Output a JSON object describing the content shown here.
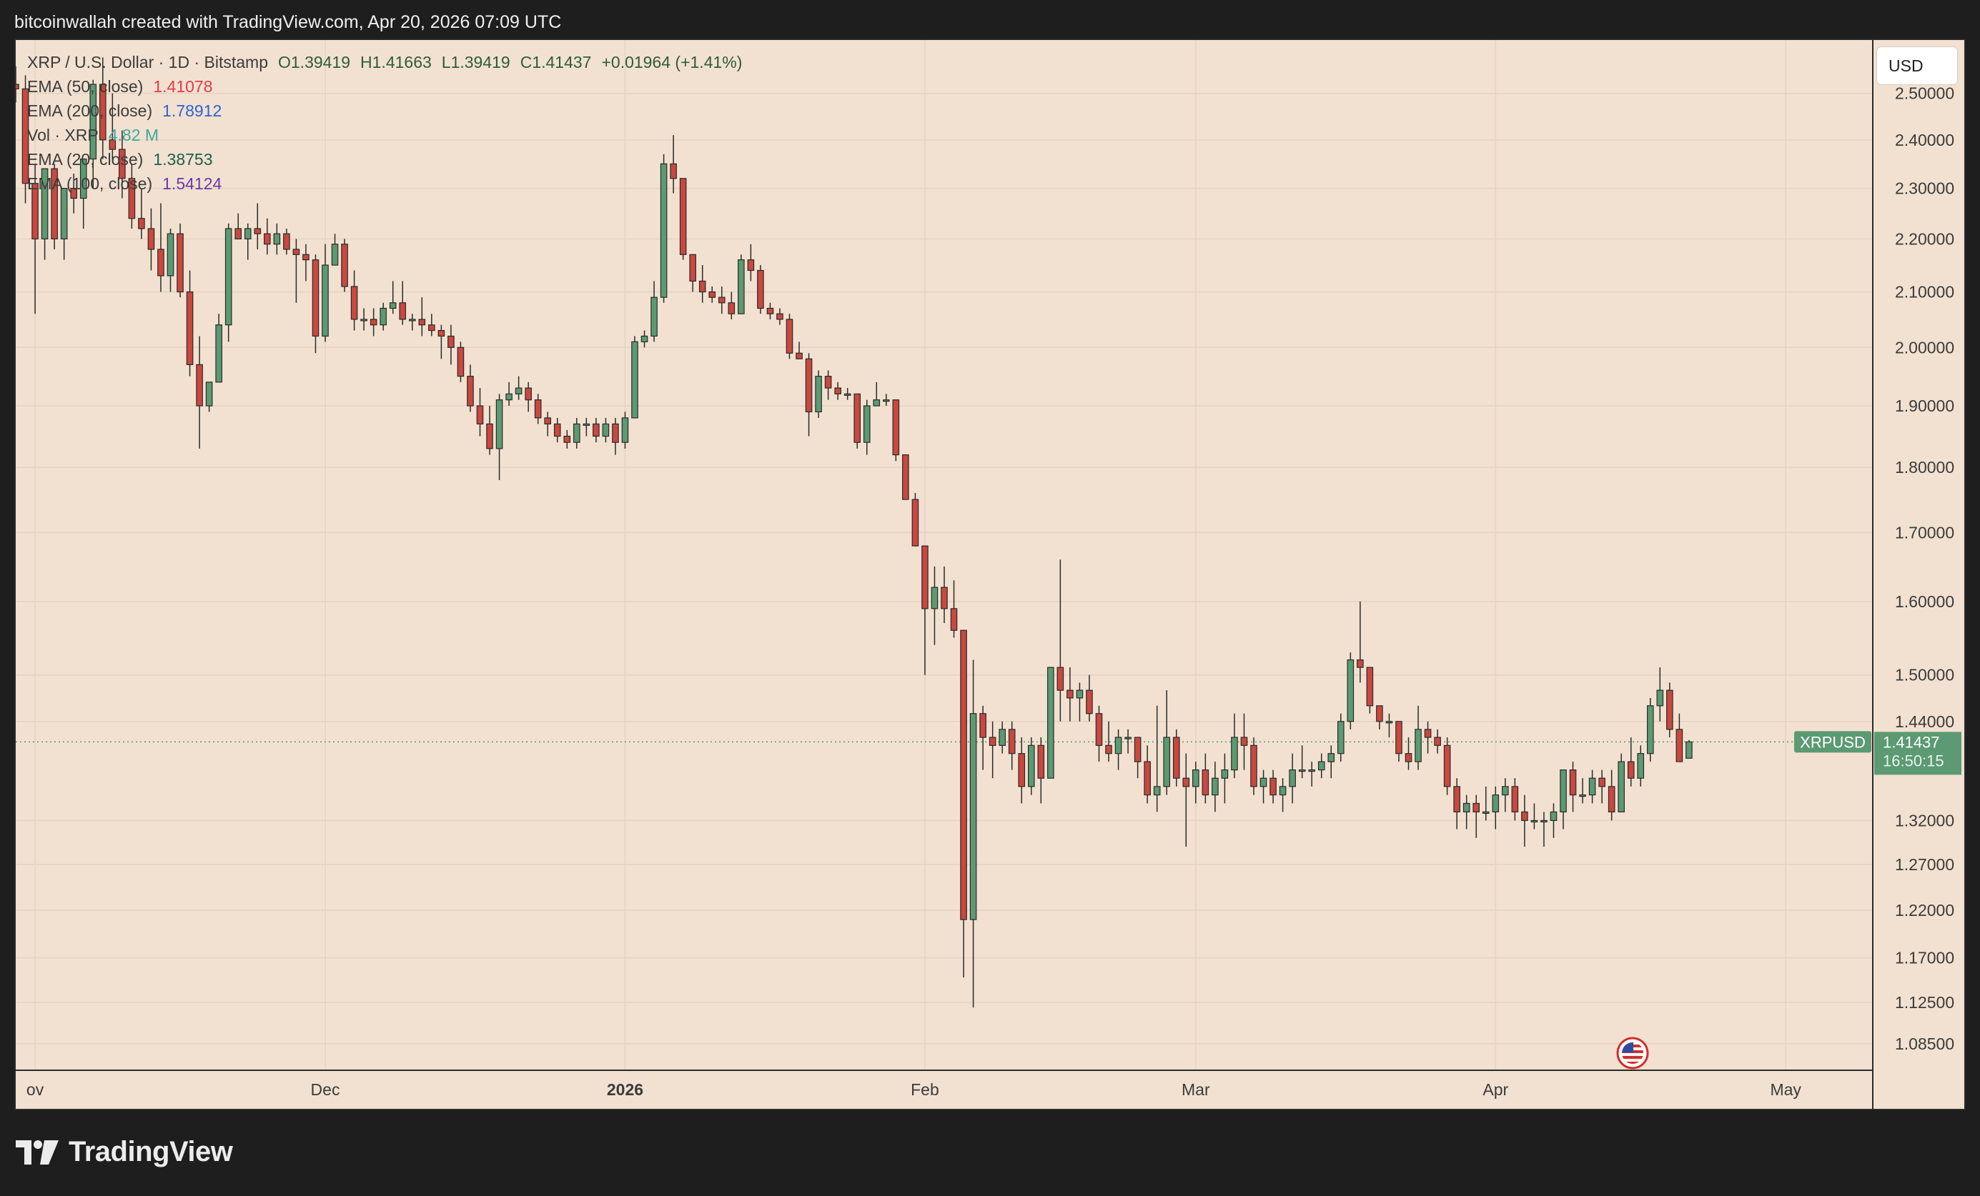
{
  "header": {
    "attribution": "bitcoinwallah created with TradingView.com, Apr 20, 2026 07:09 UTC"
  },
  "legend": {
    "symbol": "XRP / U.S. Dollar · 1D · Bitstamp",
    "open": "O1.39419",
    "high": "H1.41663",
    "low": "L1.39419",
    "close": "C1.41437",
    "change": "+0.01964 (+1.41%)",
    "ema50_label": "EMA (50, close)",
    "ema50_value": "1.41078",
    "ema200_label": "EMA (200, close)",
    "ema200_value": "1.78912",
    "vol_label": "Vol · XRP",
    "vol_value": "4.82 M",
    "ema20_label": "EMA (20, close)",
    "ema20_value": "1.38753",
    "ema100_label": "EMA (100, close)",
    "ema100_value": "1.54124"
  },
  "currency_button": "USD",
  "price_tag": {
    "symbol": "XRPUSD",
    "price": "1.41437",
    "countdown": "16:50:15"
  },
  "footer": {
    "brand": "TradingView"
  },
  "colors": {
    "up": "#5b9a72",
    "down": "#c9483f",
    "background": "#f2e1d0",
    "ema50": "#e03c4a",
    "ema200": "#2f62d6",
    "ema20": "#1f5e4a",
    "ema100": "#6a3aa8",
    "vol": "#3fa6a0"
  },
  "chart_data": {
    "type": "candlestick",
    "title": "XRP / U.S. Dollar · 1D · Bitstamp",
    "x_range": [
      "2025-10-30",
      "2026-05-10"
    ],
    "y_scale": "log",
    "y_range": [
      1.06,
      2.62
    ],
    "y_ticks": [
      2.5,
      2.4,
      2.3,
      2.2,
      2.1,
      2.0,
      1.9,
      1.8,
      1.7,
      1.6,
      1.5,
      1.44,
      1.32,
      1.27,
      1.22,
      1.17,
      1.125,
      1.085
    ],
    "x_ticks": [
      {
        "label": "ov",
        "date": "2025-11-01"
      },
      {
        "label": "Dec",
        "date": "2025-12-01"
      },
      {
        "label": "2026",
        "date": "2026-01-01"
      },
      {
        "label": "Feb",
        "date": "2026-02-01"
      },
      {
        "label": "Mar",
        "date": "2026-03-01"
      },
      {
        "label": "Apr",
        "date": "2026-04-01"
      },
      {
        "label": "May",
        "date": "2026-05-01"
      }
    ],
    "grid": true,
    "last_price": 1.41437,
    "candles": [
      [
        "2025-10-30",
        2.52,
        2.56,
        2.48,
        2.51
      ],
      [
        "2025-10-31",
        2.51,
        2.54,
        2.27,
        2.31
      ],
      [
        "2025-11-01",
        2.31,
        2.35,
        2.06,
        2.2
      ],
      [
        "2025-11-02",
        2.2,
        2.34,
        2.16,
        2.34
      ],
      [
        "2025-11-03",
        2.34,
        2.35,
        2.18,
        2.2
      ],
      [
        "2025-11-04",
        2.2,
        2.3,
        2.16,
        2.3
      ],
      [
        "2025-11-05",
        2.3,
        2.33,
        2.25,
        2.28
      ],
      [
        "2025-11-06",
        2.28,
        2.36,
        2.22,
        2.36
      ],
      [
        "2025-11-07",
        2.36,
        2.53,
        2.3,
        2.52
      ],
      [
        "2025-11-08",
        2.52,
        2.58,
        2.36,
        2.4
      ],
      [
        "2025-11-09",
        2.4,
        2.5,
        2.36,
        2.38
      ],
      [
        "2025-11-10",
        2.38,
        2.42,
        2.28,
        2.32
      ],
      [
        "2025-11-11",
        2.32,
        2.35,
        2.22,
        2.24
      ],
      [
        "2025-11-12",
        2.24,
        2.3,
        2.2,
        2.22
      ],
      [
        "2025-11-13",
        2.22,
        2.26,
        2.14,
        2.18
      ],
      [
        "2025-11-14",
        2.18,
        2.27,
        2.1,
        2.13
      ],
      [
        "2025-11-15",
        2.13,
        2.22,
        2.1,
        2.21
      ],
      [
        "2025-11-16",
        2.21,
        2.23,
        2.09,
        2.1
      ],
      [
        "2025-11-17",
        2.1,
        2.14,
        1.95,
        1.97
      ],
      [
        "2025-11-18",
        1.97,
        2.02,
        1.83,
        1.9
      ],
      [
        "2025-11-19",
        1.9,
        1.94,
        1.89,
        1.94
      ],
      [
        "2025-11-20",
        1.94,
        2.06,
        1.94,
        2.04
      ],
      [
        "2025-11-21",
        2.04,
        2.23,
        2.01,
        2.22
      ],
      [
        "2025-11-22",
        2.22,
        2.25,
        2.2,
        2.2
      ],
      [
        "2025-11-23",
        2.2,
        2.23,
        2.16,
        2.22
      ],
      [
        "2025-11-24",
        2.22,
        2.27,
        2.18,
        2.21
      ],
      [
        "2025-11-25",
        2.21,
        2.24,
        2.17,
        2.19
      ],
      [
        "2025-11-26",
        2.19,
        2.23,
        2.17,
        2.21
      ],
      [
        "2025-11-27",
        2.21,
        2.22,
        2.17,
        2.18
      ],
      [
        "2025-11-28",
        2.18,
        2.2,
        2.08,
        2.17
      ],
      [
        "2025-11-29",
        2.17,
        2.19,
        2.12,
        2.16
      ],
      [
        "2025-11-30",
        2.16,
        2.17,
        1.99,
        2.02
      ],
      [
        "2025-12-01",
        2.02,
        2.19,
        2.01,
        2.15
      ],
      [
        "2025-12-02",
        2.15,
        2.21,
        2.15,
        2.19
      ],
      [
        "2025-12-03",
        2.19,
        2.2,
        2.1,
        2.11
      ],
      [
        "2025-12-04",
        2.11,
        2.14,
        2.03,
        2.05
      ],
      [
        "2025-12-05",
        2.05,
        2.07,
        2.03,
        2.05
      ],
      [
        "2025-12-06",
        2.05,
        2.07,
        2.02,
        2.04
      ],
      [
        "2025-12-07",
        2.04,
        2.08,
        2.03,
        2.07
      ],
      [
        "2025-12-08",
        2.07,
        2.12,
        2.06,
        2.08
      ],
      [
        "2025-12-09",
        2.08,
        2.12,
        2.04,
        2.05
      ],
      [
        "2025-12-10",
        2.05,
        2.06,
        2.03,
        2.05
      ],
      [
        "2025-12-11",
        2.05,
        2.09,
        2.02,
        2.04
      ],
      [
        "2025-12-12",
        2.04,
        2.06,
        2.02,
        2.03
      ],
      [
        "2025-12-13",
        2.03,
        2.04,
        1.98,
        2.02
      ],
      [
        "2025-12-14",
        2.02,
        2.04,
        1.97,
        2.0
      ],
      [
        "2025-12-15",
        2.0,
        2.01,
        1.94,
        1.95
      ],
      [
        "2025-12-16",
        1.95,
        1.97,
        1.89,
        1.9
      ],
      [
        "2025-12-17",
        1.9,
        1.93,
        1.85,
        1.87
      ],
      [
        "2025-12-18",
        1.87,
        1.9,
        1.82,
        1.83
      ],
      [
        "2025-12-19",
        1.83,
        1.92,
        1.78,
        1.91
      ],
      [
        "2025-12-20",
        1.91,
        1.94,
        1.9,
        1.92
      ],
      [
        "2025-12-21",
        1.92,
        1.95,
        1.91,
        1.93
      ],
      [
        "2025-12-22",
        1.93,
        1.94,
        1.89,
        1.91
      ],
      [
        "2025-12-23",
        1.91,
        1.92,
        1.87,
        1.88
      ],
      [
        "2025-12-24",
        1.88,
        1.89,
        1.85,
        1.87
      ],
      [
        "2025-12-25",
        1.87,
        1.88,
        1.84,
        1.85
      ],
      [
        "2025-12-26",
        1.85,
        1.86,
        1.83,
        1.84
      ],
      [
        "2025-12-27",
        1.84,
        1.88,
        1.83,
        1.87
      ],
      [
        "2025-12-28",
        1.87,
        1.88,
        1.85,
        1.87
      ],
      [
        "2025-12-29",
        1.87,
        1.88,
        1.84,
        1.85
      ],
      [
        "2025-12-30",
        1.85,
        1.88,
        1.84,
        1.87
      ],
      [
        "2025-12-31",
        1.87,
        1.88,
        1.82,
        1.84
      ],
      [
        "2026-01-01",
        1.84,
        1.89,
        1.83,
        1.88
      ],
      [
        "2026-01-02",
        1.88,
        2.02,
        1.88,
        2.01
      ],
      [
        "2026-01-03",
        2.01,
        2.03,
        2.0,
        2.02
      ],
      [
        "2026-01-04",
        2.02,
        2.12,
        2.01,
        2.09
      ],
      [
        "2026-01-05",
        2.09,
        2.37,
        2.08,
        2.35
      ],
      [
        "2026-01-06",
        2.35,
        2.41,
        2.29,
        2.32
      ],
      [
        "2026-01-07",
        2.32,
        2.32,
        2.16,
        2.17
      ],
      [
        "2026-01-08",
        2.17,
        2.17,
        2.1,
        2.12
      ],
      [
        "2026-01-09",
        2.12,
        2.15,
        2.08,
        2.1
      ],
      [
        "2026-01-10",
        2.1,
        2.11,
        2.08,
        2.09
      ],
      [
        "2026-01-11",
        2.09,
        2.11,
        2.06,
        2.08
      ],
      [
        "2026-01-12",
        2.08,
        2.1,
        2.05,
        2.06
      ],
      [
        "2026-01-13",
        2.06,
        2.17,
        2.06,
        2.16
      ],
      [
        "2026-01-14",
        2.16,
        2.19,
        2.12,
        2.14
      ],
      [
        "2026-01-15",
        2.14,
        2.15,
        2.06,
        2.07
      ],
      [
        "2026-01-16",
        2.07,
        2.08,
        2.05,
        2.06
      ],
      [
        "2026-01-17",
        2.06,
        2.07,
        2.04,
        2.05
      ],
      [
        "2026-01-18",
        2.05,
        2.06,
        1.98,
        1.99
      ],
      [
        "2026-01-19",
        1.99,
        2.01,
        1.98,
        1.98
      ],
      [
        "2026-01-20",
        1.98,
        1.99,
        1.85,
        1.89
      ],
      [
        "2026-01-21",
        1.89,
        1.96,
        1.88,
        1.95
      ],
      [
        "2026-01-22",
        1.95,
        1.96,
        1.91,
        1.93
      ],
      [
        "2026-01-23",
        1.93,
        1.94,
        1.91,
        1.92
      ],
      [
        "2026-01-24",
        1.92,
        1.93,
        1.91,
        1.92
      ],
      [
        "2026-01-25",
        1.92,
        1.92,
        1.83,
        1.84
      ],
      [
        "2026-01-26",
        1.84,
        1.91,
        1.82,
        1.9
      ],
      [
        "2026-01-27",
        1.9,
        1.94,
        1.9,
        1.91
      ],
      [
        "2026-01-28",
        1.91,
        1.92,
        1.9,
        1.91
      ],
      [
        "2026-01-29",
        1.91,
        1.91,
        1.81,
        1.82
      ],
      [
        "2026-01-30",
        1.82,
        1.82,
        1.75,
        1.75
      ],
      [
        "2026-01-31",
        1.75,
        1.76,
        1.68,
        1.68
      ],
      [
        "2026-02-01",
        1.68,
        1.68,
        1.5,
        1.59
      ],
      [
        "2026-02-02",
        1.59,
        1.65,
        1.54,
        1.62
      ],
      [
        "2026-02-03",
        1.62,
        1.65,
        1.57,
        1.59
      ],
      [
        "2026-02-04",
        1.59,
        1.63,
        1.55,
        1.56
      ],
      [
        "2026-02-05",
        1.56,
        1.56,
        1.15,
        1.21
      ],
      [
        "2026-02-06",
        1.21,
        1.52,
        1.12,
        1.45
      ],
      [
        "2026-02-07",
        1.45,
        1.46,
        1.38,
        1.42
      ],
      [
        "2026-02-08",
        1.42,
        1.44,
        1.37,
        1.41
      ],
      [
        "2026-02-09",
        1.41,
        1.44,
        1.4,
        1.43
      ],
      [
        "2026-02-10",
        1.43,
        1.44,
        1.38,
        1.4
      ],
      [
        "2026-02-11",
        1.4,
        1.42,
        1.34,
        1.36
      ],
      [
        "2026-02-12",
        1.36,
        1.42,
        1.35,
        1.41
      ],
      [
        "2026-02-13",
        1.41,
        1.42,
        1.34,
        1.37
      ],
      [
        "2026-02-14",
        1.37,
        1.51,
        1.37,
        1.51
      ],
      [
        "2026-02-15",
        1.51,
        1.66,
        1.44,
        1.48
      ],
      [
        "2026-02-16",
        1.48,
        1.51,
        1.44,
        1.47
      ],
      [
        "2026-02-17",
        1.47,
        1.49,
        1.44,
        1.48
      ],
      [
        "2026-02-18",
        1.48,
        1.5,
        1.44,
        1.45
      ],
      [
        "2026-02-19",
        1.45,
        1.46,
        1.39,
        1.41
      ],
      [
        "2026-02-20",
        1.41,
        1.44,
        1.39,
        1.4
      ],
      [
        "2026-02-21",
        1.4,
        1.43,
        1.38,
        1.42
      ],
      [
        "2026-02-22",
        1.42,
        1.43,
        1.4,
        1.42
      ],
      [
        "2026-02-23",
        1.42,
        1.42,
        1.37,
        1.39
      ],
      [
        "2026-02-24",
        1.39,
        1.41,
        1.34,
        1.35
      ],
      [
        "2026-02-25",
        1.35,
        1.46,
        1.33,
        1.36
      ],
      [
        "2026-02-26",
        1.36,
        1.48,
        1.35,
        1.42
      ],
      [
        "2026-02-27",
        1.42,
        1.43,
        1.36,
        1.37
      ],
      [
        "2026-02-28",
        1.37,
        1.4,
        1.29,
        1.36
      ],
      [
        "2026-03-01",
        1.36,
        1.39,
        1.34,
        1.38
      ],
      [
        "2026-03-02",
        1.38,
        1.4,
        1.34,
        1.35
      ],
      [
        "2026-03-03",
        1.35,
        1.39,
        1.33,
        1.37
      ],
      [
        "2026-03-04",
        1.37,
        1.4,
        1.34,
        1.38
      ],
      [
        "2026-03-05",
        1.38,
        1.45,
        1.37,
        1.42
      ],
      [
        "2026-03-06",
        1.42,
        1.45,
        1.38,
        1.41
      ],
      [
        "2026-03-07",
        1.41,
        1.42,
        1.35,
        1.36
      ],
      [
        "2026-03-08",
        1.36,
        1.38,
        1.34,
        1.37
      ],
      [
        "2026-03-09",
        1.37,
        1.38,
        1.34,
        1.35
      ],
      [
        "2026-03-10",
        1.35,
        1.37,
        1.33,
        1.36
      ],
      [
        "2026-03-11",
        1.36,
        1.4,
        1.34,
        1.38
      ],
      [
        "2026-03-12",
        1.38,
        1.41,
        1.37,
        1.38
      ],
      [
        "2026-03-13",
        1.38,
        1.39,
        1.36,
        1.38
      ],
      [
        "2026-03-14",
        1.38,
        1.4,
        1.37,
        1.39
      ],
      [
        "2026-03-15",
        1.39,
        1.41,
        1.37,
        1.4
      ],
      [
        "2026-03-16",
        1.4,
        1.45,
        1.39,
        1.44
      ],
      [
        "2026-03-17",
        1.44,
        1.53,
        1.43,
        1.52
      ],
      [
        "2026-03-18",
        1.52,
        1.6,
        1.49,
        1.51
      ],
      [
        "2026-03-19",
        1.51,
        1.51,
        1.45,
        1.46
      ],
      [
        "2026-03-20",
        1.46,
        1.46,
        1.43,
        1.44
      ],
      [
        "2026-03-21",
        1.44,
        1.45,
        1.42,
        1.44
      ],
      [
        "2026-03-22",
        1.44,
        1.44,
        1.39,
        1.4
      ],
      [
        "2026-03-23",
        1.4,
        1.42,
        1.38,
        1.39
      ],
      [
        "2026-03-24",
        1.39,
        1.46,
        1.38,
        1.43
      ],
      [
        "2026-03-25",
        1.43,
        1.44,
        1.4,
        1.42
      ],
      [
        "2026-03-26",
        1.42,
        1.43,
        1.4,
        1.41
      ],
      [
        "2026-03-27",
        1.41,
        1.42,
        1.35,
        1.36
      ],
      [
        "2026-03-28",
        1.36,
        1.37,
        1.31,
        1.33
      ],
      [
        "2026-03-29",
        1.33,
        1.35,
        1.31,
        1.34
      ],
      [
        "2026-03-30",
        1.34,
        1.35,
        1.3,
        1.33
      ],
      [
        "2026-03-31",
        1.33,
        1.36,
        1.32,
        1.33
      ],
      [
        "2026-04-01",
        1.33,
        1.36,
        1.31,
        1.35
      ],
      [
        "2026-04-02",
        1.35,
        1.37,
        1.33,
        1.36
      ],
      [
        "2026-04-03",
        1.36,
        1.37,
        1.32,
        1.33
      ],
      [
        "2026-04-04",
        1.33,
        1.35,
        1.29,
        1.32
      ],
      [
        "2026-04-05",
        1.32,
        1.34,
        1.31,
        1.32
      ],
      [
        "2026-04-06",
        1.32,
        1.33,
        1.29,
        1.32
      ],
      [
        "2026-04-07",
        1.32,
        1.34,
        1.3,
        1.33
      ],
      [
        "2026-04-08",
        1.33,
        1.38,
        1.31,
        1.38
      ],
      [
        "2026-04-09",
        1.38,
        1.39,
        1.33,
        1.35
      ],
      [
        "2026-04-10",
        1.35,
        1.37,
        1.34,
        1.35
      ],
      [
        "2026-04-11",
        1.35,
        1.38,
        1.34,
        1.37
      ],
      [
        "2026-04-12",
        1.37,
        1.38,
        1.34,
        1.36
      ],
      [
        "2026-04-13",
        1.36,
        1.38,
        1.32,
        1.33
      ],
      [
        "2026-04-14",
        1.33,
        1.4,
        1.33,
        1.39
      ],
      [
        "2026-04-15",
        1.39,
        1.42,
        1.36,
        1.37
      ],
      [
        "2026-04-16",
        1.37,
        1.41,
        1.36,
        1.4
      ],
      [
        "2026-04-17",
        1.4,
        1.47,
        1.39,
        1.46
      ],
      [
        "2026-04-18",
        1.46,
        1.51,
        1.44,
        1.48
      ],
      [
        "2026-04-19",
        1.48,
        1.49,
        1.42,
        1.43
      ],
      [
        "2026-04-20",
        1.43,
        1.45,
        1.39,
        1.39
      ],
      [
        "2026-04-21",
        1.39419,
        1.41663,
        1.39419,
        1.41437
      ]
    ]
  }
}
